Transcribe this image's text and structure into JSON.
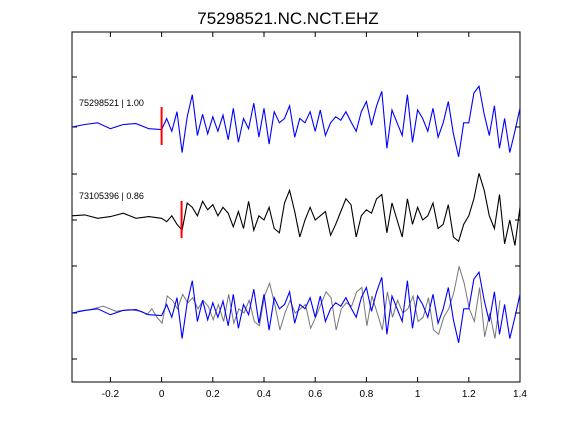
{
  "chart_data": {
    "type": "line",
    "title": "75298521.NC.NCT.EHZ",
    "xlabel": "",
    "ylabel": "",
    "xlim": [
      -0.35,
      1.4
    ],
    "x_ticks": [
      -0.2,
      0,
      0.2,
      0.4,
      0.6,
      0.8,
      1,
      1.2,
      1.4
    ],
    "x_tick_labels": [
      "-0.2",
      "0",
      "0.2",
      "0.4",
      "0.6",
      "0.8",
      "1",
      "1.2",
      "1.4"
    ],
    "grid": false,
    "colors": {
      "primary": "#0000ff",
      "secondary": "#000000",
      "overlay_secondary": "#777777",
      "pick": "#ff0000"
    },
    "traces": [
      {
        "label": "75298521 | 1.00",
        "color": "#0000ff",
        "pick_time": 0.0,
        "x": [
          -0.35,
          -0.3,
          -0.25,
          -0.2,
          -0.15,
          -0.1,
          -0.05,
          0.0,
          0.02,
          0.04,
          0.06,
          0.08,
          0.1,
          0.12,
          0.14,
          0.16,
          0.18,
          0.2,
          0.22,
          0.24,
          0.26,
          0.28,
          0.3,
          0.32,
          0.34,
          0.36,
          0.38,
          0.4,
          0.42,
          0.44,
          0.46,
          0.48,
          0.5,
          0.52,
          0.54,
          0.56,
          0.58,
          0.6,
          0.62,
          0.64,
          0.66,
          0.68,
          0.7,
          0.72,
          0.74,
          0.76,
          0.78,
          0.8,
          0.82,
          0.84,
          0.86,
          0.88,
          0.9,
          0.92,
          0.94,
          0.96,
          0.98,
          1.0,
          1.02,
          1.04,
          1.06,
          1.08,
          1.1,
          1.12,
          1.14,
          1.16,
          1.18,
          1.2,
          1.22,
          1.24,
          1.26,
          1.28,
          1.3,
          1.32,
          1.34,
          1.36,
          1.38,
          1.4
        ],
        "y": [
          0,
          0.03,
          0.05,
          -0.02,
          0.03,
          0.04,
          -0.02,
          -0.03,
          0.1,
          -0.05,
          0.18,
          -0.3,
          0.12,
          0.38,
          -0.1,
          0.15,
          -0.08,
          0.12,
          -0.05,
          0.14,
          -0.15,
          0.22,
          -0.18,
          0.1,
          -0.02,
          0.28,
          -0.12,
          0.22,
          -0.2,
          0.18,
          0.05,
          0.1,
          0.25,
          -0.12,
          0.1,
          0.05,
          0.18,
          -0.05,
          0.2,
          -0.1,
          0.05,
          0.12,
          0.08,
          0.18,
          0.06,
          -0.05,
          0.18,
          0.3,
          0.02,
          0.25,
          0.42,
          -0.25,
          0.2,
          0.05,
          -0.1,
          0.38,
          -0.18,
          0.2,
          0.1,
          -0.05,
          0.22,
          -0.12,
          0.05,
          0.3,
          -0.08,
          -0.35,
          0.05,
          0.05,
          0.4,
          0.48,
          0.15,
          -0.1,
          0.25,
          -0.25,
          0.1,
          -0.3,
          -0.05,
          0.22
        ]
      },
      {
        "label": "73105396 | 0.86",
        "color": "#000000",
        "pick_time": 0.078,
        "x": [
          -0.35,
          -0.3,
          -0.25,
          -0.2,
          -0.15,
          -0.1,
          -0.05,
          0.0,
          0.02,
          0.04,
          0.06,
          0.08,
          0.1,
          0.12,
          0.14,
          0.16,
          0.18,
          0.2,
          0.22,
          0.24,
          0.26,
          0.28,
          0.3,
          0.32,
          0.34,
          0.36,
          0.38,
          0.4,
          0.42,
          0.44,
          0.46,
          0.48,
          0.5,
          0.52,
          0.54,
          0.56,
          0.58,
          0.6,
          0.62,
          0.64,
          0.66,
          0.68,
          0.7,
          0.72,
          0.74,
          0.76,
          0.78,
          0.8,
          0.82,
          0.84,
          0.86,
          0.88,
          0.9,
          0.92,
          0.94,
          0.96,
          0.98,
          1.0,
          1.02,
          1.04,
          1.06,
          1.08,
          1.1,
          1.12,
          1.14,
          1.16,
          1.18,
          1.2,
          1.22,
          1.24,
          1.26,
          1.28,
          1.3,
          1.32,
          1.34,
          1.36,
          1.38,
          1.4
        ],
        "y": [
          0.05,
          0.06,
          0.02,
          0.04,
          0.08,
          0.02,
          0.04,
          0.02,
          -0.02,
          0.05,
          -0.05,
          -0.12,
          0.2,
          0.15,
          0.05,
          0.22,
          0.12,
          0.18,
          0.05,
          0.15,
          0.08,
          -0.08,
          0.1,
          -0.1,
          0.22,
          -0.12,
          0.05,
          0.0,
          0.15,
          -0.1,
          -0.15,
          0.2,
          0.35,
          0.1,
          -0.2,
          0.0,
          0.15,
          0.0,
          0.05,
          0.1,
          -0.18,
          -0.05,
          0.1,
          0.25,
          0.18,
          -0.2,
          0.05,
          0.12,
          0.08,
          0.25,
          0.3,
          -0.15,
          0.2,
          0.0,
          -0.2,
          0.25,
          -0.05,
          0.15,
          0.0,
          0.05,
          0.2,
          -0.1,
          -0.05,
          0.18,
          -0.2,
          -0.25,
          -0.05,
          0.05,
          0.25,
          0.55,
          0.35,
          0.05,
          -0.1,
          0.3,
          -0.28,
          0.0,
          -0.3,
          0.15
        ]
      }
    ],
    "overlay": {
      "series": [
        {
          "source": "75298521 | 1.00",
          "color": "#0000ff"
        },
        {
          "source": "73105396 | 0.86",
          "color": "#777777",
          "time_shift": -0.078
        }
      ]
    }
  }
}
